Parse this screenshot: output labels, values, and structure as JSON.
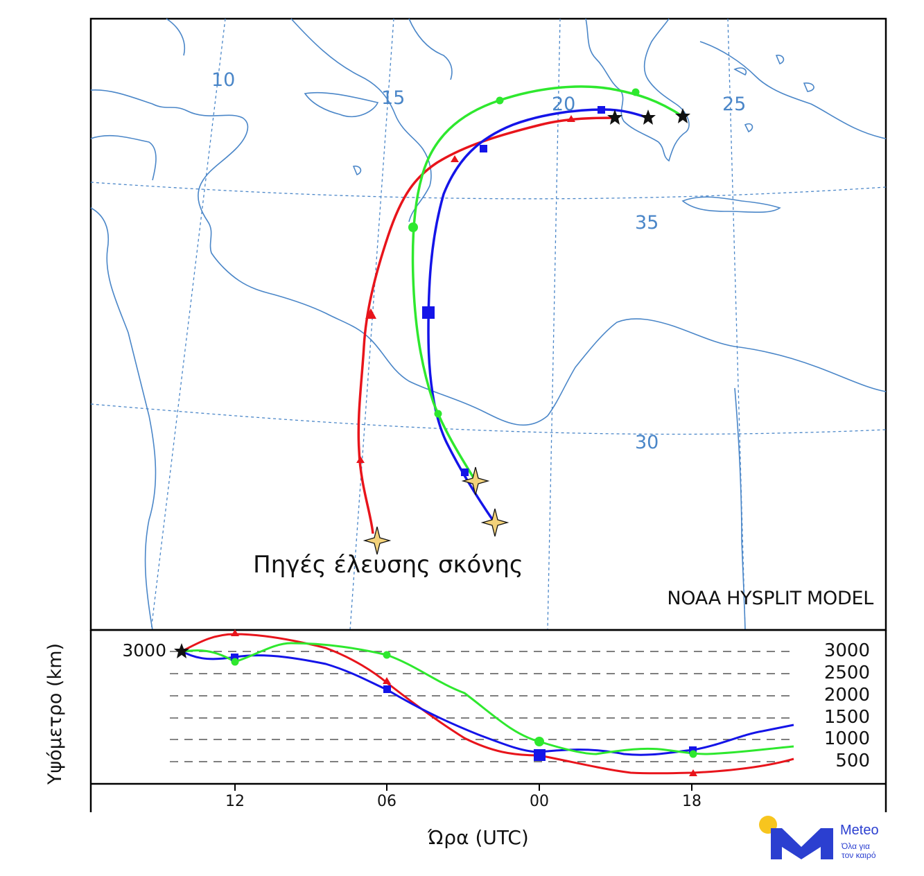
{
  "map": {
    "lon_labels": [
      "10",
      "15",
      "20",
      "25"
    ],
    "lat_labels": [
      "35",
      "30"
    ],
    "source_label": "Πηγές έλευσης σκόνης",
    "model_label": "NOAA HYSPLIT MODEL"
  },
  "altitude_panel": {
    "y_axis_label": "Υψόμετρο (km)",
    "x_axis_label": "Ώρα (UTC)",
    "start_altitude": "3000",
    "levels": [
      "3000",
      "2500",
      "2000",
      "1500",
      "1000",
      "500"
    ],
    "time_ticks": [
      "12",
      "06",
      "00",
      "18"
    ]
  },
  "trajectories": [
    {
      "name": "",
      "color": "#e8141b",
      "marker": "triangle"
    },
    {
      "name": "",
      "color": "#1414e8",
      "marker": "square"
    },
    {
      "name": "",
      "color": "#2ee82e",
      "marker": "circle"
    }
  ],
  "colors": {
    "coastline": "#4a86c8",
    "grid": "#4a86c8",
    "source_star": "#f3d27a"
  },
  "brand": {
    "name": "Meteo",
    "tagline_line1": "Όλα για",
    "tagline_line2": "τον καιρό",
    "blue": "#2b3fd0",
    "sun": "#f7c51e"
  }
}
